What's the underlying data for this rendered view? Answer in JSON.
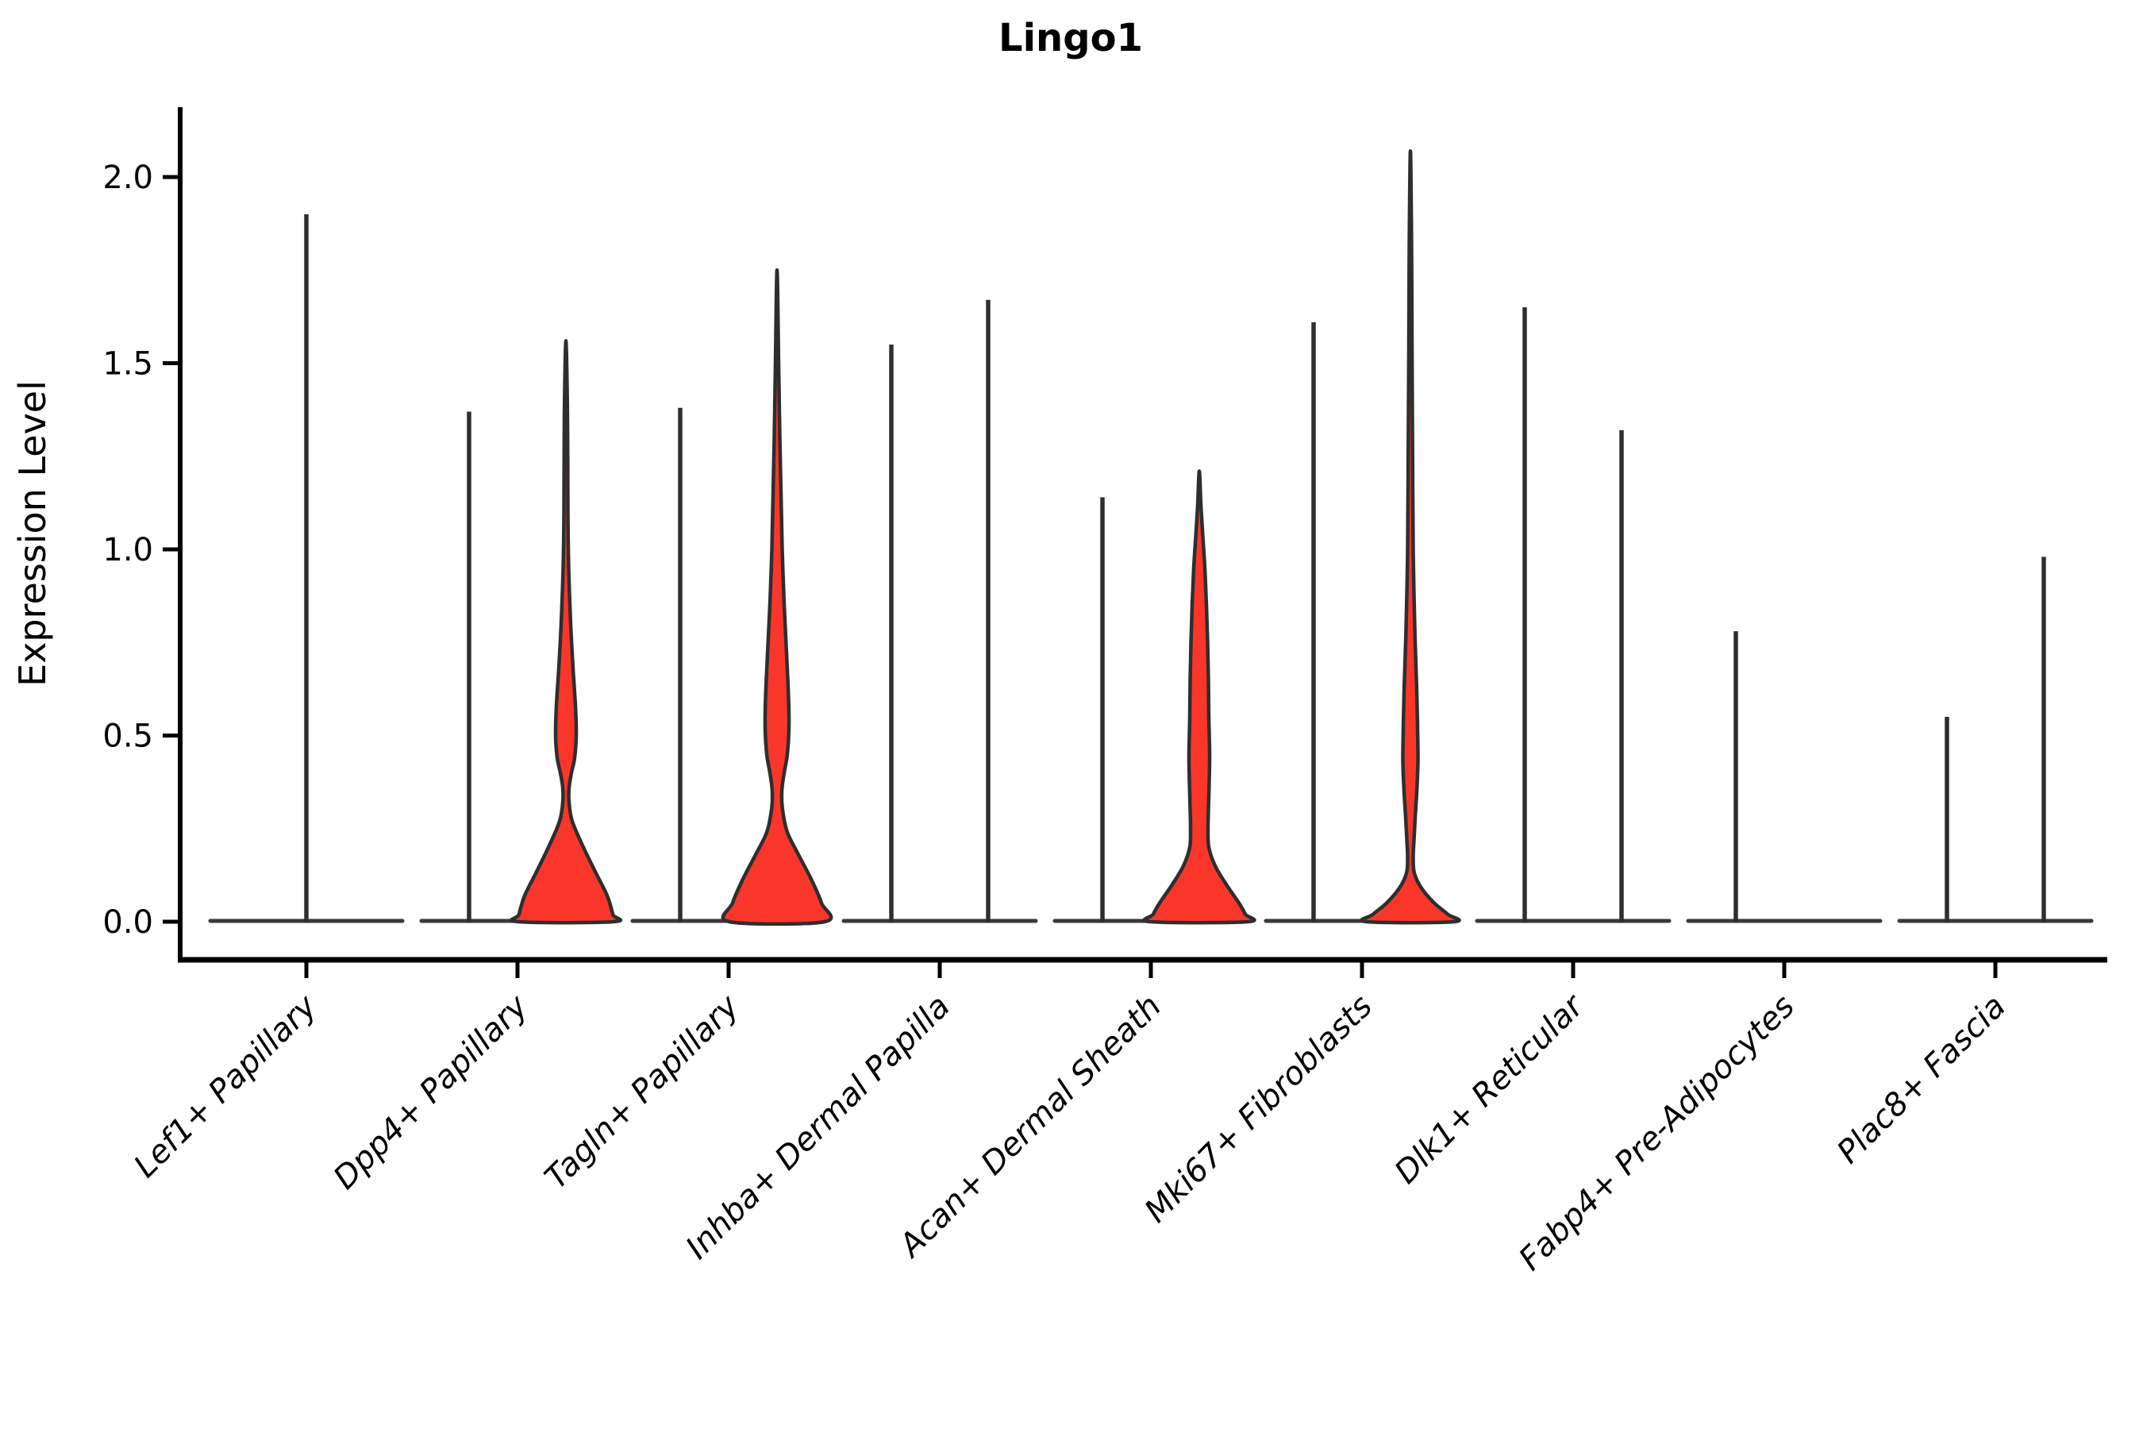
{
  "figure": {
    "background": "#ffffff",
    "accent_color": "#fa362b",
    "edge_color": "#2e2e2e",
    "axis_color": "#000000"
  },
  "chart_data": {
    "type": "violin",
    "title": "Lingo1",
    "xlabel": "",
    "ylabel": "Expression Level",
    "yticks": [
      0.0,
      0.5,
      1.0,
      1.5,
      2.0
    ],
    "ytick_labels": [
      "0.0",
      "0.5",
      "1.0",
      "1.5",
      "2.0"
    ],
    "ylim": [
      -0.1,
      2.19
    ],
    "grid": false,
    "legend_position": "none",
    "fill_color": "#fa362b",
    "edge_color": "#2e2e2e",
    "categories": [
      "Lef1+ Papillary",
      "Dpp4+ Papillary",
      "Tagln+ Papillary",
      "Inhba+ Dermal Papilla",
      "Acan+ Dermal Sheath",
      "Mki67+ Fibroblasts",
      "Dlk1+ Reticular",
      "Fabp4+ Pre-Adipocytes",
      "Plac8+ Fascia"
    ],
    "groups": [
      {
        "label": "Lef1+ Papillary",
        "violins": [
          {
            "pos": "center",
            "style": "spike",
            "max": 1.9
          }
        ]
      },
      {
        "label": "Dpp4+ Papillary",
        "violins": [
          {
            "pos": "left",
            "style": "spike",
            "max": 1.37
          },
          {
            "pos": "right",
            "style": "filled",
            "max": 1.56,
            "profile": [
              [
                1.56,
                0
              ],
              [
                1.35,
                2
              ],
              [
                1.1,
                2.5
              ],
              [
                0.95,
                3.5
              ],
              [
                0.8,
                6
              ],
              [
                0.68,
                9
              ],
              [
                0.58,
                12
              ],
              [
                0.5,
                13
              ],
              [
                0.44,
                11
              ],
              [
                0.4,
                7
              ],
              [
                0.36,
                4
              ],
              [
                0.32,
                4
              ],
              [
                0.27,
                8
              ],
              [
                0.2,
                22
              ],
              [
                0.13,
                38
              ],
              [
                0.07,
                52
              ],
              [
                0.02,
                59
              ],
              [
                0.0,
                60
              ]
            ]
          }
        ]
      },
      {
        "label": "Tagln+ Papillary",
        "violins": [
          {
            "pos": "left",
            "style": "spike",
            "max": 1.38
          },
          {
            "pos": "right",
            "style": "filled",
            "max": 1.75,
            "profile": [
              [
                1.75,
                0
              ],
              [
                1.5,
                2
              ],
              [
                1.3,
                3.5
              ],
              [
                1.15,
                5
              ],
              [
                1.0,
                6.5
              ],
              [
                0.85,
                9
              ],
              [
                0.72,
                12
              ],
              [
                0.6,
                14.5
              ],
              [
                0.52,
                15
              ],
              [
                0.45,
                13
              ],
              [
                0.4,
                9
              ],
              [
                0.35,
                6
              ],
              [
                0.3,
                7
              ],
              [
                0.24,
                13
              ],
              [
                0.18,
                27
              ],
              [
                0.11,
                44
              ],
              [
                0.05,
                56
              ],
              [
                0.0,
                60
              ]
            ]
          }
        ]
      },
      {
        "label": "Inhba+ Dermal Papilla",
        "violins": [
          {
            "pos": "left",
            "style": "spike",
            "max": 1.55
          },
          {
            "pos": "right",
            "style": "spike",
            "max": 1.67
          }
        ]
      },
      {
        "label": "Acan+ Dermal Sheath",
        "violins": [
          {
            "pos": "left",
            "style": "spike",
            "max": 1.14
          },
          {
            "pos": "right",
            "style": "filled",
            "max": 1.21,
            "profile": [
              [
                1.21,
                0
              ],
              [
                1.12,
                2
              ],
              [
                1.05,
                4
              ],
              [
                0.95,
                7
              ],
              [
                0.85,
                9
              ],
              [
                0.75,
                10.5
              ],
              [
                0.65,
                11.5
              ],
              [
                0.55,
                12
              ],
              [
                0.45,
                13
              ],
              [
                0.38,
                12.5
              ],
              [
                0.3,
                11.5
              ],
              [
                0.25,
                11
              ],
              [
                0.2,
                12
              ],
              [
                0.15,
                20
              ],
              [
                0.1,
                34
              ],
              [
                0.05,
                50
              ],
              [
                0.02,
                58
              ],
              [
                0.0,
                61
              ]
            ]
          }
        ]
      },
      {
        "label": "Mki67+ Fibroblasts",
        "violins": [
          {
            "pos": "left",
            "style": "spike",
            "max": 1.61
          },
          {
            "pos": "right",
            "style": "filled",
            "max": 2.07,
            "profile": [
              [
                2.07,
                0
              ],
              [
                1.8,
                1.5
              ],
              [
                1.55,
                2
              ],
              [
                1.35,
                2.5
              ],
              [
                1.15,
                3
              ],
              [
                1.0,
                3.5
              ],
              [
                0.88,
                4.5
              ],
              [
                0.75,
                6
              ],
              [
                0.62,
                8
              ],
              [
                0.52,
                9
              ],
              [
                0.43,
                9.5
              ],
              [
                0.35,
                8
              ],
              [
                0.28,
                6
              ],
              [
                0.22,
                4.5
              ],
              [
                0.17,
                3.5
              ],
              [
                0.13,
                5
              ],
              [
                0.09,
                14
              ],
              [
                0.05,
                30
              ],
              [
                0.02,
                47
              ],
              [
                0.0,
                55
              ]
            ]
          }
        ]
      },
      {
        "label": "Dlk1+ Reticular",
        "violins": [
          {
            "pos": "left",
            "style": "spike",
            "max": 1.65
          },
          {
            "pos": "right",
            "style": "spike",
            "max": 1.32
          }
        ]
      },
      {
        "label": "Fabp4+ Pre-Adipocytes",
        "violins": [
          {
            "pos": "left",
            "style": "spike",
            "max": 0.78
          }
        ]
      },
      {
        "label": "Plac8+ Fascia",
        "violins": [
          {
            "pos": "left",
            "style": "spike",
            "max": 0.55
          },
          {
            "pos": "right",
            "style": "spike",
            "max": 0.98
          }
        ]
      }
    ]
  }
}
